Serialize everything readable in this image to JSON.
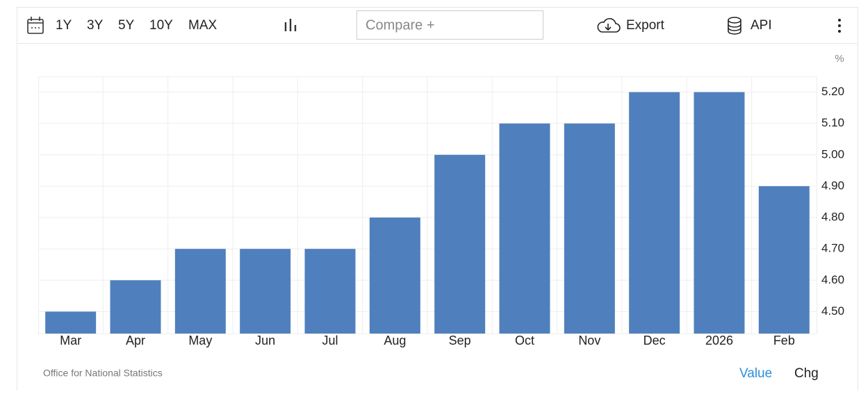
{
  "toolbar": {
    "ranges": [
      "1Y",
      "3Y",
      "5Y",
      "10Y",
      "MAX"
    ],
    "compare": "Compare +",
    "export": "Export",
    "api": "API"
  },
  "chart_data": {
    "type": "bar",
    "unit": "%",
    "categories": [
      "Mar",
      "Apr",
      "May",
      "Jun",
      "Jul",
      "Aug",
      "Sep",
      "Oct",
      "Nov",
      "Dec",
      "2026",
      "Feb"
    ],
    "values": [
      4.5,
      4.6,
      4.7,
      4.7,
      4.7,
      4.8,
      5.0,
      5.1,
      5.1,
      5.2,
      5.2,
      4.9
    ],
    "color": "#4f80bd",
    "ylim": [
      4.43,
      5.25
    ],
    "yticks": [
      {
        "value": 4.5,
        "label": "4.50"
      },
      {
        "value": 4.6,
        "label": "4.60"
      },
      {
        "value": 4.7,
        "label": "4.70"
      },
      {
        "value": 4.8,
        "label": "4.80"
      },
      {
        "value": 4.9,
        "label": "4.90"
      },
      {
        "value": 5.0,
        "label": "5.00"
      },
      {
        "value": 5.1,
        "label": "5.10"
      },
      {
        "value": 5.2,
        "label": "5.20"
      }
    ],
    "grid": true
  },
  "source": "Office for National Statistics",
  "footer_tabs": [
    "Value",
    "Chg"
  ]
}
